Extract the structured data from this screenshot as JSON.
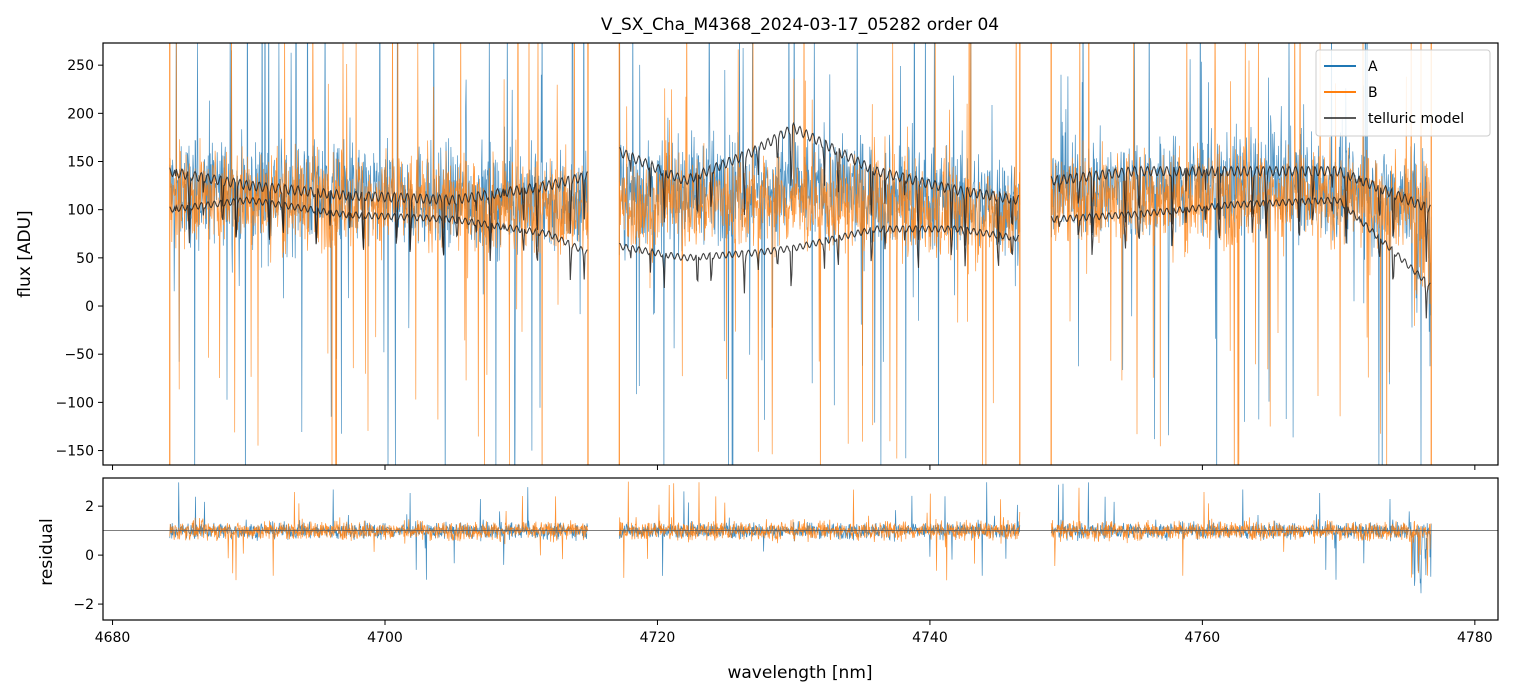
{
  "title": "V_SX_Cha_M4368_2024-03-17_05282  order 04",
  "colors": {
    "A": "#1f77b4",
    "B": "#ff7f0e",
    "telluric": "#222222",
    "axis": "#000000",
    "refline": "#555555"
  },
  "chart_data": [
    {
      "type": "line",
      "panel": "flux",
      "title": "V_SX_Cha_M4368_2024-03-17_05282  order 04",
      "xlabel": "",
      "ylabel": "flux [ADU]",
      "xlim": [
        4679.3,
        4781.7
      ],
      "ylim": [
        -165,
        273
      ],
      "yticks": [
        250,
        200,
        150,
        100,
        50,
        0,
        -50,
        -100,
        -150
      ],
      "ytick_labels": [
        "250",
        "200",
        "150",
        "100",
        "50",
        "0",
        "−50",
        "−100",
        "−150"
      ],
      "segments_nm": [
        [
          4684.2,
          4714.9
        ],
        [
          4717.2,
          4746.6
        ],
        [
          4748.9,
          4776.8
        ]
      ],
      "legend": {
        "placement": "top-right",
        "entries": [
          "A",
          "B",
          "telluric model"
        ]
      },
      "series": [
        {
          "name": "A",
          "continuum_nm": [
            4684,
            4700,
            4715,
            4725,
            4735,
            4746,
            4750,
            4765,
            4777
          ],
          "continuum_flux": [
            120,
            115,
            110,
            125,
            120,
            105,
            120,
            130,
            110
          ]
        },
        {
          "name": "B",
          "continuum_nm": [
            4684,
            4700,
            4715,
            4725,
            4735,
            4746,
            4750,
            4765,
            4777
          ],
          "continuum_flux": [
            115,
            110,
            100,
            110,
            105,
            95,
            110,
            115,
            105
          ]
        },
        {
          "name": "telluric model",
          "upper_nm": [
            4684,
            4690,
            4697,
            4705,
            4712,
            4714.9,
            4717.2,
            4722,
            4727,
            4730,
            4736,
            4742,
            4746.6,
            4748.9,
            4755,
            4762,
            4770,
            4776.8
          ],
          "upper_flux": [
            140,
            125,
            115,
            110,
            125,
            135,
            160,
            130,
            160,
            185,
            140,
            120,
            110,
            130,
            140,
            140,
            140,
            100
          ],
          "lower_nm": [
            4684,
            4690,
            4697,
            4705,
            4712,
            4714.9,
            4717.2,
            4722,
            4727,
            4730,
            4736,
            4742,
            4746.6,
            4748.9,
            4755,
            4762,
            4770,
            4776.8
          ],
          "lower_flux": [
            100,
            110,
            95,
            90,
            75,
            55,
            62,
            50,
            55,
            60,
            80,
            80,
            70,
            90,
            95,
            105,
            110,
            20
          ]
        }
      ]
    },
    {
      "type": "line",
      "panel": "residual",
      "xlabel": "wavelength [nm]",
      "ylabel": "residual",
      "xlim": [
        4679.3,
        4781.7
      ],
      "ylim": [
        -2.65,
        3.15
      ],
      "xticks": [
        4680,
        4700,
        4720,
        4740,
        4760,
        4780
      ],
      "xtick_labels": [
        "4680",
        "4700",
        "4720",
        "4740",
        "4760",
        "4780"
      ],
      "yticks": [
        2,
        0,
        -2
      ],
      "ytick_labels": [
        "2",
        "0",
        "−2"
      ],
      "reference_line": 1,
      "segments_nm": [
        [
          4684.2,
          4714.9
        ],
        [
          4717.2,
          4746.6
        ],
        [
          4748.9,
          4776.8
        ]
      ],
      "series": [
        {
          "name": "A",
          "center": 1.0,
          "spread": 0.45
        },
        {
          "name": "B",
          "center": 1.0,
          "spread": 0.55
        }
      ]
    }
  ]
}
